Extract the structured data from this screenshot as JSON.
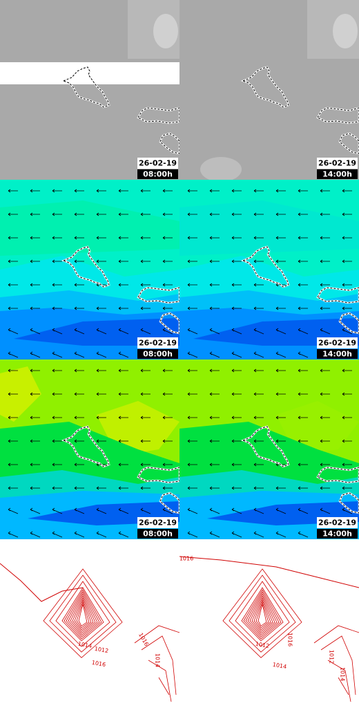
{
  "panels": [
    {
      "date": "26-02-19",
      "time": "08:00h"
    },
    {
      "date": "26-02-19",
      "time": "14:00h"
    },
    {
      "date": "26-02-19",
      "time": "08:00h"
    },
    {
      "date": "26-02-19",
      "time": "14:00h"
    },
    {
      "date": "26-02-19",
      "time": "08:00h"
    },
    {
      "date": "26-02-19",
      "time": "14:00h"
    }
  ],
  "pressure_labels": [
    [
      "1014",
      "1012",
      "1016",
      "1016",
      "1014"
    ],
    [
      "1016",
      "1012",
      "1014",
      "1016",
      "1012",
      "1014"
    ]
  ]
}
